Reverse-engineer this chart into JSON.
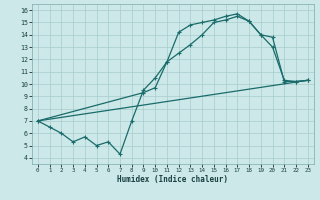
{
  "bg_color": "#cce8e8",
  "grid_color": "#a8cccc",
  "line_color": "#1a6b6b",
  "xlabel": "Humidex (Indice chaleur)",
  "xlim": [
    -0.5,
    23.5
  ],
  "ylim": [
    3.5,
    16.5
  ],
  "yticks": [
    4,
    5,
    6,
    7,
    8,
    9,
    10,
    11,
    12,
    13,
    14,
    15,
    16
  ],
  "xticks": [
    0,
    1,
    2,
    3,
    4,
    5,
    6,
    7,
    8,
    9,
    10,
    11,
    12,
    13,
    14,
    15,
    16,
    17,
    18,
    19,
    20,
    21,
    22,
    23
  ],
  "line1_x": [
    0,
    1,
    2,
    3,
    4,
    5,
    6,
    7,
    8,
    9,
    10,
    11,
    12,
    13,
    14,
    15,
    16,
    17,
    18,
    19,
    20,
    21,
    22,
    23
  ],
  "line1_y": [
    7.0,
    6.5,
    6.0,
    5.3,
    5.7,
    5.0,
    5.3,
    4.3,
    7.0,
    9.5,
    10.5,
    11.8,
    14.2,
    14.8,
    15.0,
    15.2,
    15.5,
    15.7,
    15.1,
    14.0,
    13.0,
    10.3,
    10.2,
    10.3
  ],
  "line2_x": [
    0,
    23
  ],
  "line2_y": [
    7.0,
    10.3
  ],
  "line3_x": [
    0,
    9,
    10,
    11,
    12,
    13,
    14,
    15,
    16,
    17,
    18,
    19,
    20,
    21,
    22,
    23
  ],
  "line3_y": [
    7.0,
    9.3,
    9.7,
    11.8,
    12.5,
    13.2,
    14.0,
    15.0,
    15.2,
    15.5,
    15.1,
    14.0,
    13.8,
    10.2,
    10.2,
    10.3
  ]
}
